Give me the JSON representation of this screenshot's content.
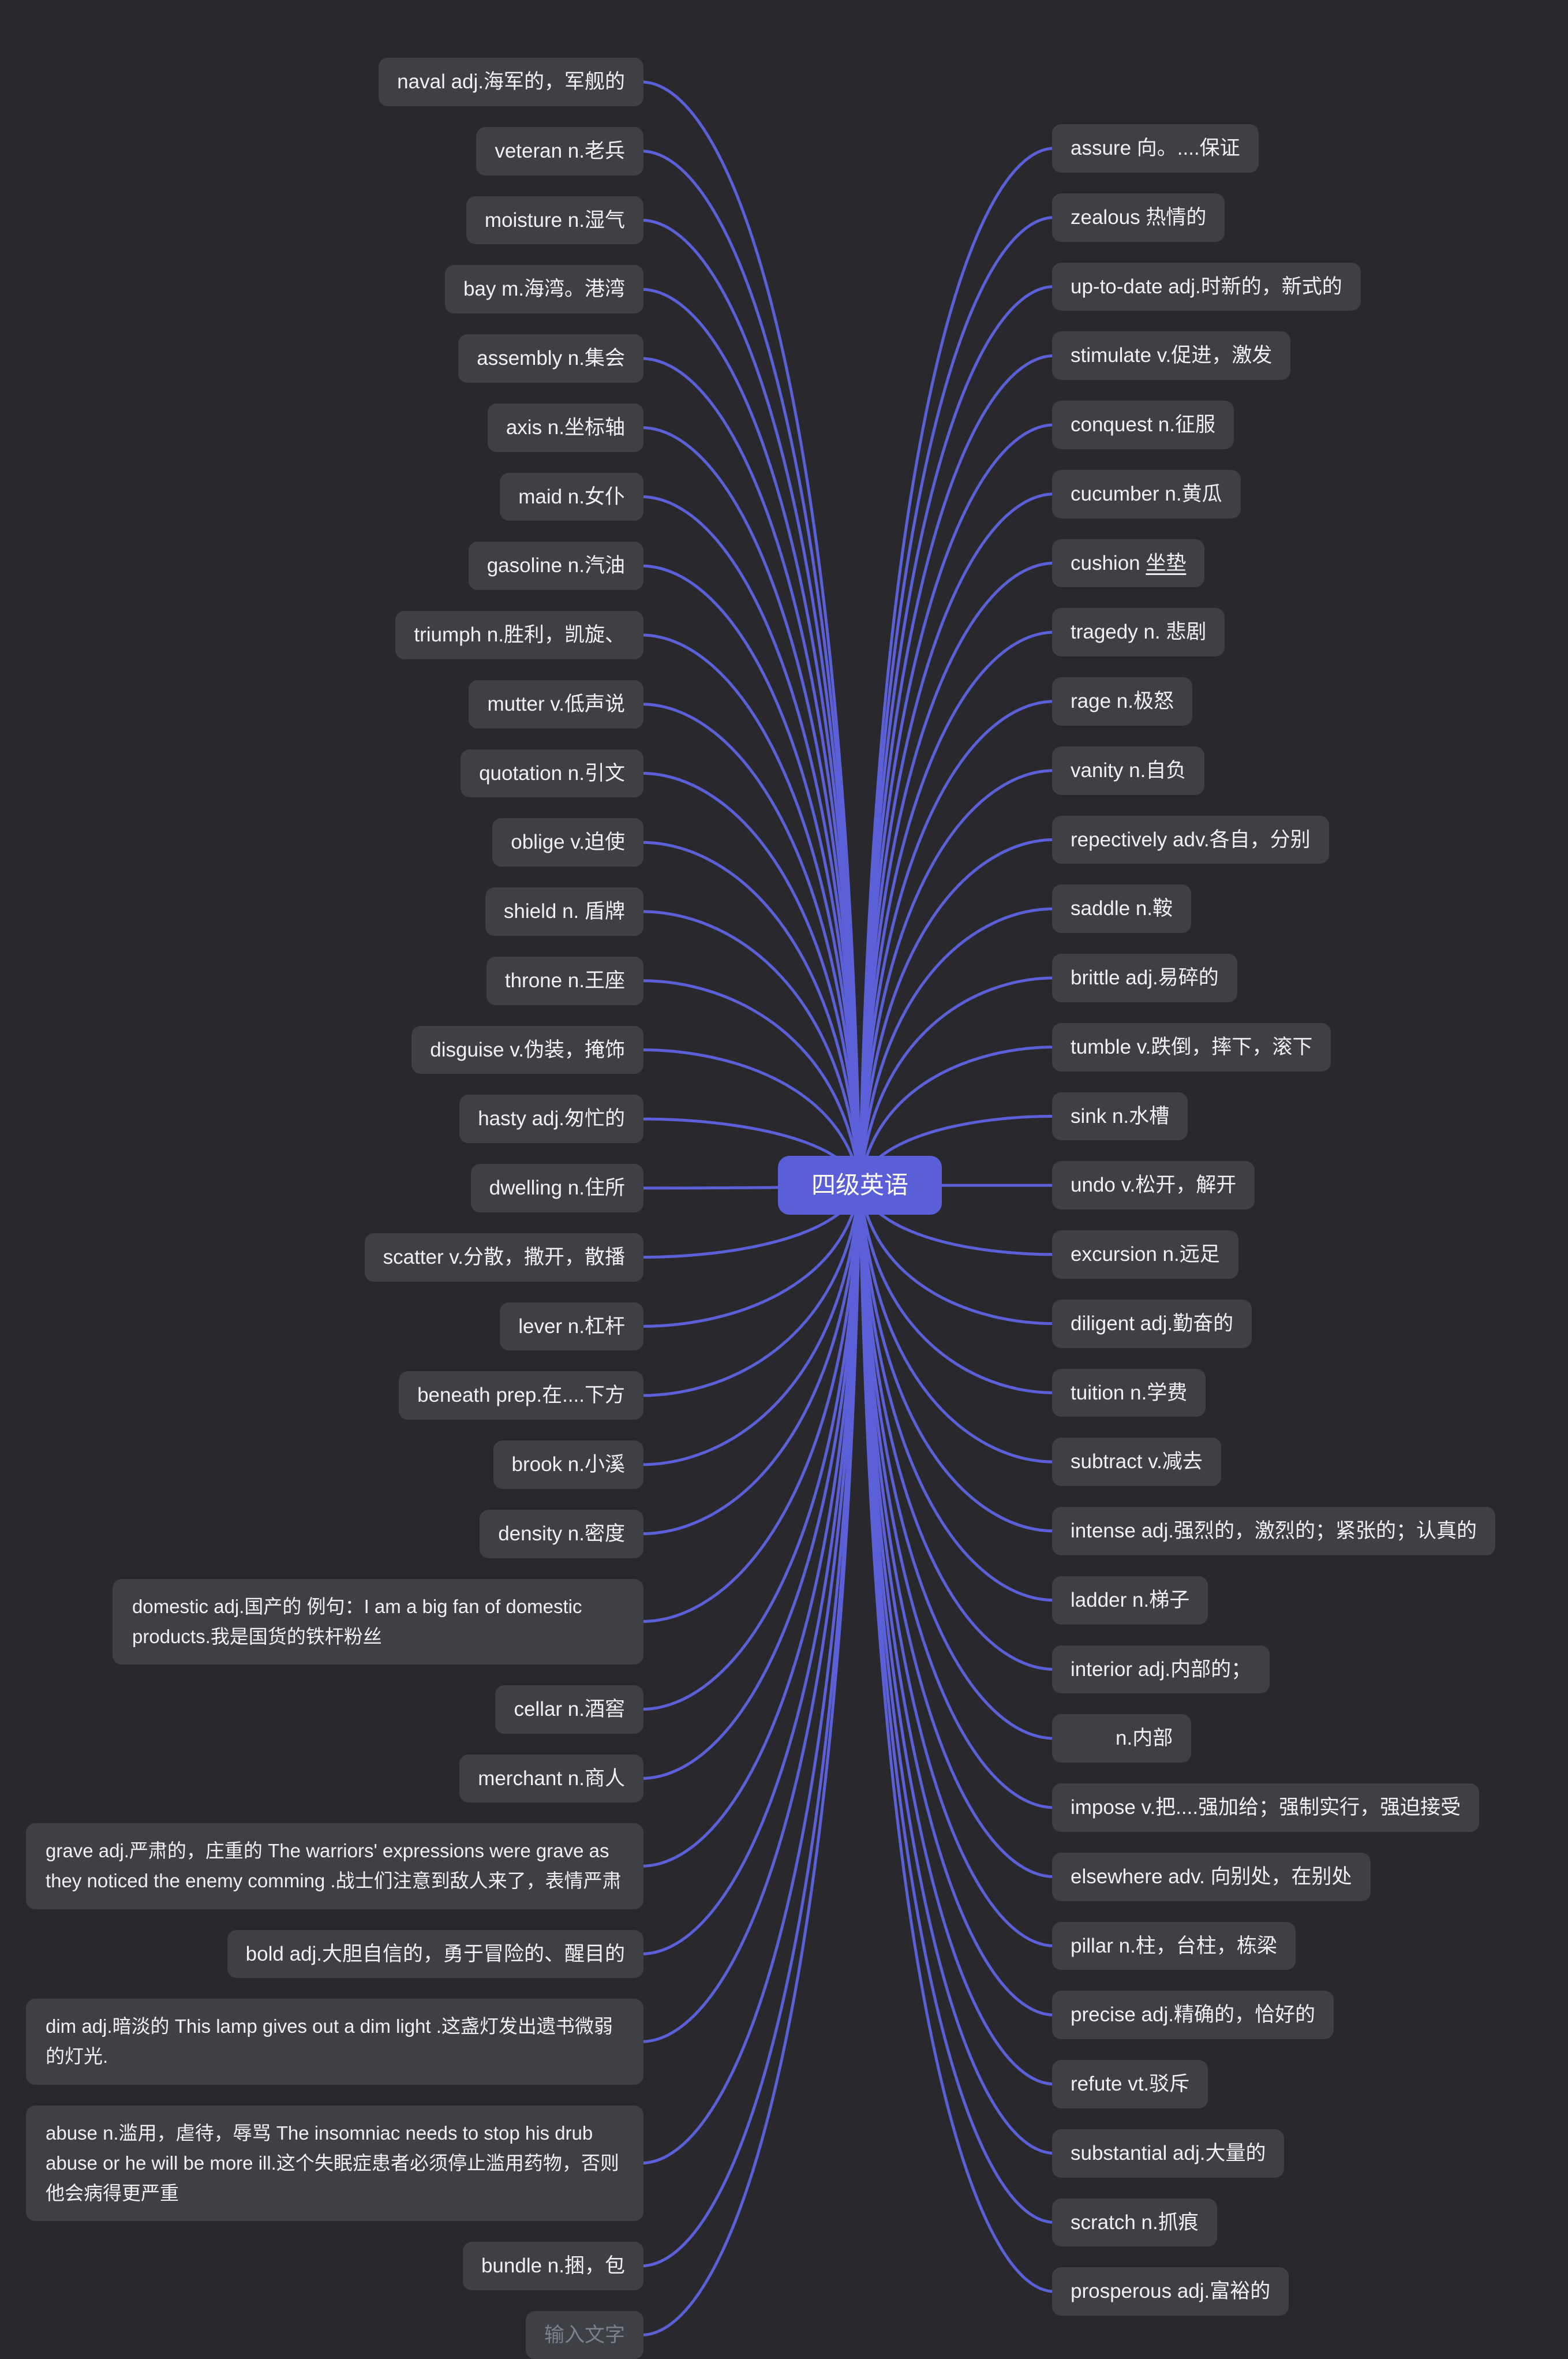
{
  "central": {
    "label": "四级英语"
  },
  "colors": {
    "background": "#29292d",
    "node_bg": "#3f4046",
    "node_text": "#f1f1f2",
    "branch_line": "#5c60d8",
    "central_bg": "#5a5fd8",
    "central_text": "#ffffff",
    "placeholder_text": "#7b818a"
  },
  "left_items": [
    {
      "label": "naval adj.海军的，军舰的"
    },
    {
      "label": "veteran n.老兵"
    },
    {
      "label": "moisture n.湿气"
    },
    {
      "label": "bay m.海湾。港湾"
    },
    {
      "label": "assembly n.集会"
    },
    {
      "label": "axis n.坐标轴"
    },
    {
      "label": "maid n.女仆"
    },
    {
      "label": "gasoline n.汽油"
    },
    {
      "label": "triumph n.胜利，凯旋、"
    },
    {
      "label": "mutter v.低声说"
    },
    {
      "label": "quotation n.引文"
    },
    {
      "label": "oblige v.迫使"
    },
    {
      "label": "shield n. 盾牌"
    },
    {
      "label": "throne n.王座"
    },
    {
      "label": "disguise v.伪装，掩饰"
    },
    {
      "label": "hasty adj.匆忙的"
    },
    {
      "label": "dwelling n.住所"
    },
    {
      "label": "scatter v.分散，撒开，散播"
    },
    {
      "label": "lever n.杠杆"
    },
    {
      "label": "beneath prep.在....下方"
    },
    {
      "label": "brook n.小溪"
    },
    {
      "label": "density n.密度"
    },
    {
      "label": "domestic adj.国产的  例句：I am a big fan of domestic products.我是国货的铁杆粉丝",
      "wide": 1
    },
    {
      "label": "cellar n.酒窖"
    },
    {
      "label": "merchant n.商人"
    },
    {
      "label": "grave adj.严肃的，庄重的 The warriors' expressions were grave as they noticed the enemy comming .战士们注意到敌人来了，表情严肃",
      "wide": 2
    },
    {
      "label": "bold adj.大胆自信的，勇于冒险的、醒目的"
    },
    {
      "label": "dim adj.暗淡的  This lamp gives out a dim light .这盏灯发出遗书微弱的灯光.",
      "wide": 2
    },
    {
      "label": "abuse n.滥用，虐待，辱骂 The insomniac needs to stop his drub abuse or he will be more ill.这个失眠症患者必须停止滥用药物，否则他会病得更严重",
      "wide": 2
    },
    {
      "label": "bundle n.捆，包"
    },
    {
      "label": "输入文字",
      "placeholder": true
    }
  ],
  "right_items": [
    {
      "label": "assure 向。....保证"
    },
    {
      "label": "zealous 热情的"
    },
    {
      "label": "up-to-date adj.时新的，新式的"
    },
    {
      "label": "stimulate v.促进，激发"
    },
    {
      "label": "conquest n.征服"
    },
    {
      "label": "cucumber n.黄瓜"
    },
    {
      "label": "cushion ",
      "underline": "坐垫"
    },
    {
      "label": "tragedy n. 悲剧"
    },
    {
      "label": "rage n.极怒"
    },
    {
      "label": "vanity n.自负"
    },
    {
      "label": "repectively adv.各自，分别"
    },
    {
      "label": "saddle n.鞍"
    },
    {
      "label": "brittle adj.易碎的"
    },
    {
      "label": "tumble v.跌倒，摔下，滚下"
    },
    {
      "label": "sink n.水槽"
    },
    {
      "label": "undo v.松开，解开"
    },
    {
      "label": "excursion n.远足"
    },
    {
      "label": "diligent adj.勤奋的"
    },
    {
      "label": "tuition n.学费"
    },
    {
      "label": "subtract v.减去"
    },
    {
      "label": "intense adj.强烈的，激烈的；紧张的；认真的"
    },
    {
      "label": "ladder n.梯子"
    },
    {
      "label": "interior adj.内部的；"
    },
    {
      "label": "n.内部",
      "indent": true
    },
    {
      "label": "impose v.把....强加给；强制实行，强迫接受"
    },
    {
      "label": "elsewhere adv. 向别处，在别处"
    },
    {
      "label": "pillar n.柱，台柱，栋梁"
    },
    {
      "label": "precise adj.精确的，恰好的"
    },
    {
      "label": "refute vt.驳斥"
    },
    {
      "label": "substantial adj.大量的"
    },
    {
      "label": "scratch n.抓痕"
    },
    {
      "label": "prosperous adj.富裕的"
    }
  ]
}
